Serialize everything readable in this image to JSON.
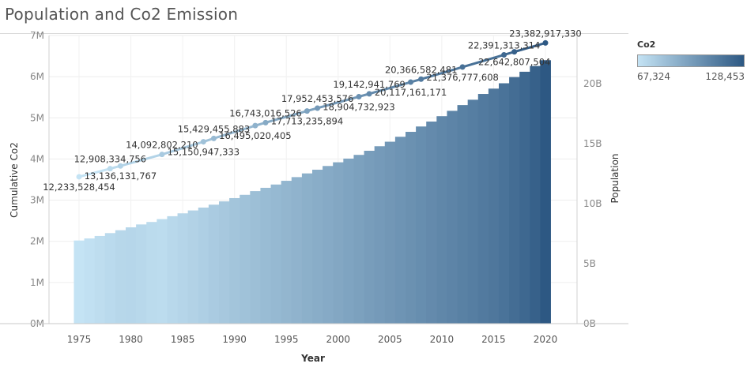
{
  "page": {
    "title": "Population and Co2 Emission"
  },
  "legend": {
    "title": "Co2",
    "min_label": "67,324",
    "max_label": "128,453",
    "min_color": "#c4e3f4",
    "max_color": "#2d5883"
  },
  "chart_data": {
    "type": "bar",
    "title": "Population and Co2 Emission",
    "xlabel": "Year",
    "ylabel": "Cumulative Co2",
    "y2label": "Population",
    "x_ticks": [
      1975,
      1980,
      1985,
      1990,
      1995,
      2000,
      2005,
      2010,
      2015,
      2020
    ],
    "y_ticks": [
      "0M",
      "1M",
      "2M",
      "3M",
      "4M",
      "5M",
      "6M",
      "7M"
    ],
    "y2_ticks": [
      "0B",
      "5B",
      "10B",
      "15B",
      "20B"
    ],
    "ylim": [
      0,
      7000000
    ],
    "y2lim": [
      0,
      24000000000
    ],
    "grid": true,
    "legend_position": "top-right",
    "series": [
      {
        "chart": "bar",
        "axis": "left",
        "x": [
          1975,
          1976,
          1977,
          1978,
          1979,
          1980,
          1981,
          1982,
          1983,
          1984,
          1985,
          1986,
          1987,
          1988,
          1989,
          1990,
          1991,
          1992,
          1993,
          1994,
          1995,
          1996,
          1997,
          1998,
          1999,
          2000,
          2001,
          2002,
          2003,
          2004,
          2005,
          2006,
          2007,
          2008,
          2009,
          2010,
          2011,
          2012,
          2013,
          2014,
          2015,
          2016,
          2017,
          2018,
          2019,
          2020
        ],
        "values": [
          2020000,
          2070000,
          2130000,
          2200000,
          2270000,
          2340000,
          2410000,
          2470000,
          2540000,
          2610000,
          2680000,
          2750000,
          2820000,
          2890000,
          2970000,
          3050000,
          3130000,
          3220000,
          3300000,
          3380000,
          3470000,
          3560000,
          3650000,
          3740000,
          3830000,
          3920000,
          4010000,
          4100000,
          4200000,
          4310000,
          4420000,
          4540000,
          4660000,
          4790000,
          4910000,
          5040000,
          5170000,
          5310000,
          5440000,
          5580000,
          5710000,
          5840000,
          5990000,
          6120000,
          6260000,
          6400000
        ],
        "co2": [
          67324,
          68600,
          69900,
          71200,
          72500,
          73000,
          72000,
          71000,
          70500,
          72000,
          73500,
          74800,
          76200,
          77700,
          79200,
          80700,
          82000,
          83300,
          84600,
          85900,
          87200,
          88500,
          89800,
          91100,
          92400,
          93700,
          95100,
          96500,
          97900,
          99300,
          100700,
          102100,
          103500,
          104900,
          106300,
          107700,
          109100,
          110500,
          111900,
          113300,
          114700,
          116600,
          119000,
          121500,
          124500,
          128453
        ]
      },
      {
        "chart": "line",
        "axis": "right",
        "x": [
          1975,
          1978,
          1979,
          1983,
          1987,
          1988,
          1992,
          1993,
          1997,
          1998,
          2002,
          2003,
          2007,
          2008,
          2012,
          2016,
          2017,
          2020
        ],
        "values": [
          12233528454,
          12908334756,
          13136131767,
          14092802210,
          15150947333,
          15429455883,
          16495020405,
          16743016526,
          17713235894,
          17952453576,
          18904732923,
          19142941769,
          20117161171,
          20366582481,
          21376777608,
          22391313314,
          22642807504,
          23382917330
        ],
        "labels": [
          "12,233,528,454",
          "12,908,334,756",
          "13,136,131,767",
          "14,092,802,210",
          "15,150,947,333",
          "15,429,455,883",
          "16,495,020,405",
          "16,743,016,526",
          "17,713,235,894",
          "17,952,453,576",
          "18,904,732,923",
          "19,142,941,769",
          "20,117,161,171",
          "20,366,582,481",
          "21,376,777,608",
          "22,391,313,314",
          "22,642,807,504",
          "23,382,917,330"
        ],
        "label_pos": [
          "below",
          "above",
          "below",
          "above",
          "below",
          "above",
          "below",
          "above",
          "below",
          "above",
          "below",
          "above",
          "below",
          "above",
          "below",
          "above",
          "below",
          "above"
        ]
      }
    ]
  }
}
